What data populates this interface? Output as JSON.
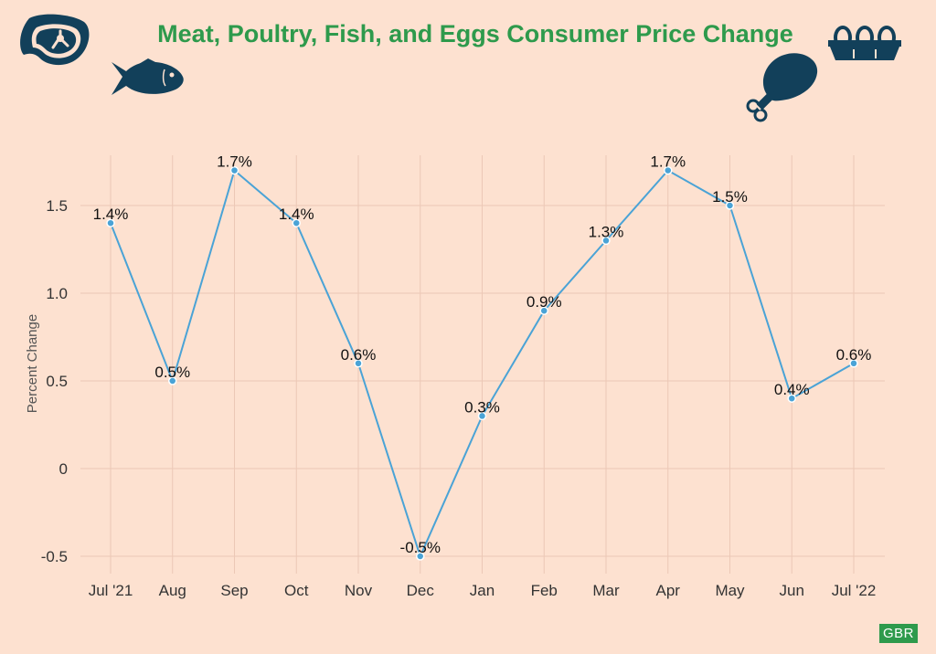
{
  "title": "Meat, Poultry, Fish, and Eggs Consumer Price Change",
  "watermark": "GBR",
  "icons": [
    "steak-icon",
    "fish-icon",
    "chicken-leg-icon",
    "egg-carton-icon"
  ],
  "colors": {
    "background": "#fde1d0",
    "title": "#2e9a4c",
    "line": "#4aa3d6",
    "icon": "#12405a",
    "grid": "#ecc8b6"
  },
  "chart_data": {
    "type": "line",
    "title": "Meat, Poultry, Fish, and Eggs Consumer Price Change",
    "xlabel": "",
    "ylabel": "Percent Change",
    "categories": [
      "Jul '21",
      "Aug",
      "Sep",
      "Oct",
      "Nov",
      "Dec",
      "Jan",
      "Feb",
      "Mar",
      "Apr",
      "May",
      "Jun",
      "Jul '22"
    ],
    "series": [
      {
        "values": [
          1.4,
          0.5,
          1.7,
          1.4,
          0.6,
          -0.5,
          0.3,
          0.9,
          1.3,
          1.7,
          1.5,
          0.4,
          0.6
        ],
        "labels": [
          "1.4%",
          "0.5%",
          "1.7%",
          "1.4%",
          "0.6%",
          "-0.5%",
          "0.3%",
          "0.9%",
          "1.3%",
          "1.7%",
          "1.5%",
          "0.4%",
          "0.6%"
        ]
      }
    ],
    "yticks": [
      -0.5,
      0,
      0.5,
      1.0,
      1.5
    ],
    "ytick_labels": [
      "-0.5",
      "0",
      "0.5",
      "1.0",
      "1.5"
    ],
    "ylim": [
      -0.55,
      1.8
    ],
    "grid": true,
    "legend": "none"
  }
}
